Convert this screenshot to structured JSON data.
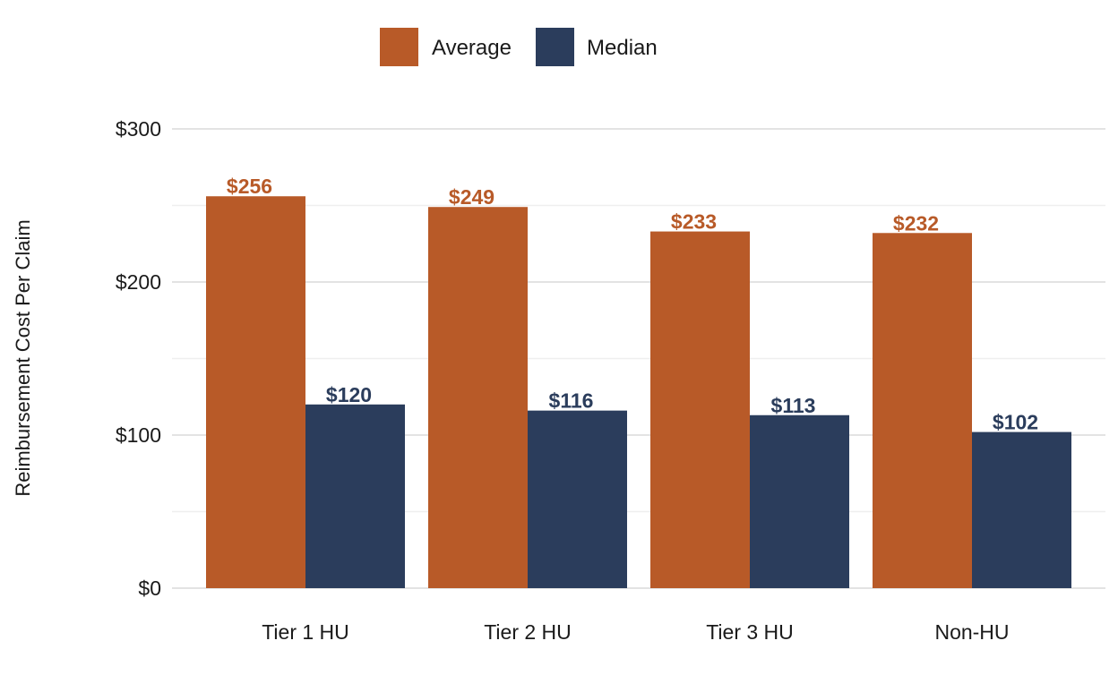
{
  "chart_data": {
    "type": "bar",
    "categories": [
      "Tier 1 HU",
      "Tier 2 HU",
      "Tier 3 HU",
      "Non-HU"
    ],
    "series": [
      {
        "name": "Average",
        "color": "#b85a28",
        "values": [
          256,
          249,
          233,
          232
        ],
        "labels": [
          "$256",
          "$249",
          "$233",
          "$232"
        ]
      },
      {
        "name": "Median",
        "color": "#2b3d5c",
        "values": [
          120,
          116,
          113,
          102
        ],
        "labels": [
          "$120",
          "$116",
          "$113",
          "$102"
        ]
      }
    ],
    "title": "",
    "xlabel": "",
    "ylabel": "Reimbursement Cost Per Claim",
    "ylim": [
      0,
      300
    ],
    "yticks": [
      0,
      100,
      200,
      300
    ],
    "ytick_labels": [
      "$0",
      "$100",
      "$200",
      "$300"
    ],
    "grid": true,
    "legend_position": "top"
  }
}
